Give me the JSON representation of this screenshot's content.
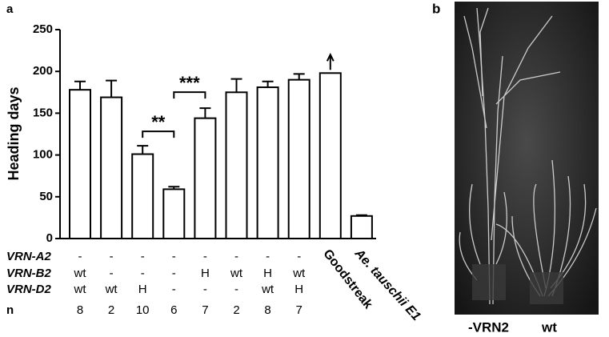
{
  "chart_data": {
    "type": "bar",
    "panel_label": "a",
    "ylabel": "Heading days",
    "categories": [
      null,
      null,
      null,
      null,
      null,
      null,
      null,
      null,
      "Goodstreak",
      "Ae. tauschii E1"
    ],
    "values": [
      178,
      169,
      101,
      59,
      144,
      175,
      181,
      190,
      198,
      27
    ],
    "errors": [
      10,
      20,
      10,
      3,
      12,
      16,
      7,
      7,
      null,
      1
    ],
    "color": "#ffffff",
    "ylim": [
      0,
      250
    ],
    "yticks": [
      0,
      50,
      100,
      150,
      200,
      250
    ],
    "significance": [
      {
        "from": 2,
        "to": 3,
        "label": "**"
      },
      {
        "from": 3,
        "to": 4,
        "label": "***"
      }
    ],
    "genotype_table": {
      "rows": [
        {
          "label": "VRN-A2",
          "cells": [
            "-",
            "-",
            "-",
            "-",
            "-",
            "-",
            "-",
            "-"
          ]
        },
        {
          "label": "VRN-B2",
          "cells": [
            "wt",
            "-",
            "-",
            "-",
            "H",
            "wt",
            "H",
            "wt"
          ]
        },
        {
          "label": "VRN-D2",
          "cells": [
            "wt",
            "wt",
            "H",
            "-",
            "-",
            "-",
            "wt",
            "H"
          ]
        },
        {
          "label": "n",
          "cells": [
            8,
            2,
            10,
            6,
            7,
            2,
            8,
            7
          ]
        }
      ]
    }
  },
  "panel_b": {
    "label": "b",
    "captions": [
      "-VRN2",
      "wt"
    ]
  }
}
